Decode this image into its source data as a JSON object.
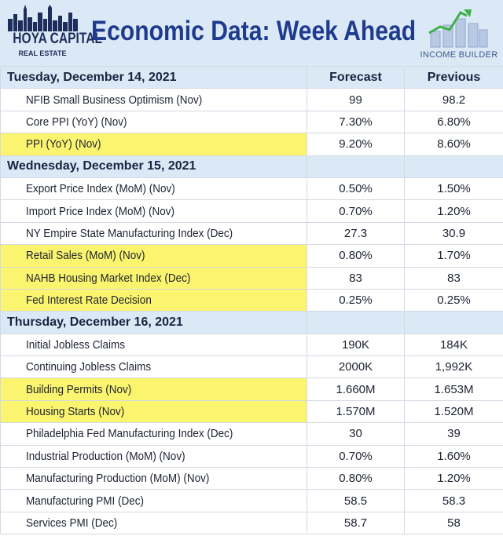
{
  "header": {
    "brand_line1": "HOYA CAPITAL",
    "brand_line2": "REAL ESTATE",
    "title": "Economic Data: Week Ahead",
    "income_builder": "INCOME BUILDER",
    "colors": {
      "title": "#1f3b8e",
      "header_bg": "#dbe9f6",
      "highlight": "#fbf46e"
    }
  },
  "columns": {
    "forecast": "Forecast",
    "previous": "Previous"
  },
  "sections": [
    {
      "date": "Tuesday, December 14, 2021",
      "show_columns": true,
      "rows": [
        {
          "name": "NFIB Small Business Optimism (Nov)",
          "forecast": "99",
          "previous": "98.2",
          "highlight": false
        },
        {
          "name": "Core PPI (YoY) (Nov)",
          "forecast": "7.30%",
          "previous": "6.80%",
          "highlight": false
        },
        {
          "name": "PPI (YoY) (Nov)",
          "forecast": "9.20%",
          "previous": "8.60%",
          "highlight": true
        }
      ]
    },
    {
      "date": "Wednesday, December 15, 2021",
      "show_columns": false,
      "rows": [
        {
          "name": "Export Price Index (MoM) (Nov)",
          "forecast": "0.50%",
          "previous": "1.50%",
          "highlight": false
        },
        {
          "name": "Import Price Index (MoM) (Nov)",
          "forecast": "0.70%",
          "previous": "1.20%",
          "highlight": false
        },
        {
          "name": "NY Empire State Manufacturing Index (Dec)",
          "forecast": "27.3",
          "previous": "30.9",
          "highlight": false
        },
        {
          "name": "Retail Sales (MoM) (Nov)",
          "forecast": "0.80%",
          "previous": "1.70%",
          "highlight": true
        },
        {
          "name": "NAHB Housing Market Index (Dec)",
          "forecast": "83",
          "previous": "83",
          "highlight": true
        },
        {
          "name": "Fed Interest Rate Decision",
          "forecast": "0.25%",
          "previous": "0.25%",
          "highlight": true
        }
      ]
    },
    {
      "date": "Thursday, December 16, 2021",
      "show_columns": false,
      "rows": [
        {
          "name": "Initial Jobless Claims",
          "forecast": "190K",
          "previous": "184K",
          "highlight": false
        },
        {
          "name": "Continuing Jobless Claims",
          "forecast": "2000K",
          "previous": "1,992K",
          "highlight": false
        },
        {
          "name": "Building Permits (Nov)",
          "forecast": "1.660M",
          "previous": "1.653M",
          "highlight": true
        },
        {
          "name": "Housing Starts (Nov)",
          "forecast": "1.570M",
          "previous": "1.520M",
          "highlight": true
        },
        {
          "name": "Philadelphia Fed Manufacturing Index (Dec)",
          "forecast": "30",
          "previous": "39",
          "highlight": false
        },
        {
          "name": "Industrial Production (MoM) (Nov)",
          "forecast": "0.70%",
          "previous": "1.60%",
          "highlight": false
        },
        {
          "name": "Manufacturing Production (MoM) (Nov)",
          "forecast": "0.80%",
          "previous": "1.20%",
          "highlight": false
        },
        {
          "name": "Manufacturing PMI (Dec)",
          "forecast": "58.5",
          "previous": "58.3",
          "highlight": false
        },
        {
          "name": "Services PMI (Dec)",
          "forecast": "58.7",
          "previous": "58",
          "highlight": false
        }
      ]
    }
  ]
}
